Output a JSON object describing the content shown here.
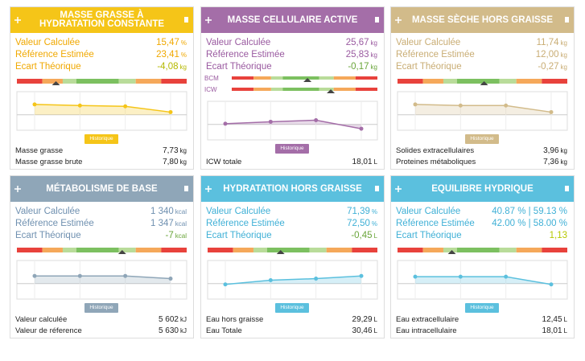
{
  "cards": [
    {
      "title": "MASSE GRASSE À HYDRATATION CONSTANTE",
      "color": "#f5c518",
      "text_color": "#f0a800",
      "rows": [
        {
          "label": "Valeur Calculée",
          "value": "15,47",
          "unit": "%"
        },
        {
          "label": "Référence Estimée",
          "value": "23,41",
          "unit": "%"
        },
        {
          "label": "Ecart Théorique",
          "value": "-4,08",
          "unit": "kg",
          "color": "#b5b800"
        }
      ],
      "gauges": [
        {
          "marker": 23
        }
      ],
      "history": [
        67,
        64,
        62,
        47
      ],
      "button": "Historique",
      "footer": [
        {
          "label": "Masse grasse",
          "value": "7,73",
          "unit": "kg"
        },
        {
          "label": "Masse grasse brute",
          "value": "7,80",
          "unit": "kg"
        }
      ]
    },
    {
      "title": "MASSE CELLULAIRE ACTIVE",
      "color": "#a46ea8",
      "text_color": "#9a5aa0",
      "rows": [
        {
          "label": "Valeur Calculée",
          "value": "25,67",
          "unit": "kg"
        },
        {
          "label": "Référence Estimée",
          "value": "25,83",
          "unit": "kg"
        },
        {
          "label": "Ecart Théorique",
          "value": "-0,17",
          "unit": "kg",
          "color": "#6aa53a"
        }
      ],
      "gauges": [
        {
          "label": "BCM",
          "marker": 52
        },
        {
          "label": "ICW",
          "marker": 68
        }
      ],
      "history": [
        42,
        47,
        51,
        29
      ],
      "button": "Historique",
      "footer": [
        {
          "label": "ICW totale",
          "value": "18,01",
          "unit": "L"
        }
      ]
    },
    {
      "title": "MASSE SÈCHE HORS GRAISSE",
      "color": "#d2bb8a",
      "text_color": "#c9ad74",
      "rows": [
        {
          "label": "Valeur Calculée",
          "value": "11,74",
          "unit": "kg"
        },
        {
          "label": "Référence Estimée",
          "value": "12,00",
          "unit": "kg"
        },
        {
          "label": "Ecart Théorique",
          "value": "-0,27",
          "unit": "kg"
        }
      ],
      "gauges": [
        {
          "marker": 51
        }
      ],
      "history": [
        67,
        64,
        64,
        47
      ],
      "button": "Historique",
      "footer": [
        {
          "label": "Solides extracellulaires",
          "value": "3,96",
          "unit": "kg"
        },
        {
          "label": "Proteines métaboliques",
          "value": "7,36",
          "unit": "kg"
        }
      ]
    },
    {
      "title": "MÉTABOLISME DE BASE",
      "color": "#8fa6b8",
      "text_color": "#6f90b0",
      "rows": [
        {
          "label": "Valeur Calculée",
          "value": "1 340",
          "unit": "kcal"
        },
        {
          "label": "Référence Estimée",
          "value": "1 347",
          "unit": "kcal"
        },
        {
          "label": "Ecart Théorique",
          "value": "-7",
          "unit": "kcal",
          "color": "#6aa53a"
        }
      ],
      "gauges": [
        {
          "marker": 62
        }
      ],
      "history": [
        60,
        60,
        60,
        53
      ],
      "button": "Historique",
      "footer": [
        {
          "label": "Valeur calculée",
          "value": "5 602",
          "unit": "kJ"
        },
        {
          "label": "Valeur de réference",
          "value": "5 630",
          "unit": "kJ"
        }
      ]
    },
    {
      "title": "HYDRATATION HORS GRAISSE",
      "color": "#5bc0de",
      "text_color": "#3fb0d6",
      "rows": [
        {
          "label": "Valeur Calculée",
          "value": "71,39",
          "unit": "%"
        },
        {
          "label": "Référence Estimée",
          "value": "72,50",
          "unit": "%"
        },
        {
          "label": "Ecart Théorique",
          "value": "-0,45",
          "unit": "L",
          "color": "#6aa53a"
        }
      ],
      "gauges": [
        {
          "marker": 43
        }
      ],
      "history": [
        38,
        49,
        53,
        60
      ],
      "button": "Historique",
      "footer": [
        {
          "label": "Eau hors graisse",
          "value": "29,29",
          "unit": "L"
        },
        {
          "label": "Eau Totale",
          "value": "30,46",
          "unit": "L"
        }
      ]
    },
    {
      "title": "EQUILIBRE HYDRIQUE",
      "color": "#5bc0de",
      "text_color": "#3fb0d6",
      "rows": [
        {
          "label": "Valeur Calculée",
          "value": "40.87 % | 59.13 %",
          "unit": ""
        },
        {
          "label": "Référence Estimée",
          "value": "42.00 % | 58.00 %",
          "unit": ""
        },
        {
          "label": "Ecart Théorique",
          "value": "1,13",
          "unit": "",
          "color": "#b5c800"
        }
      ],
      "gauges": [
        {
          "marker": 32
        }
      ],
      "history": [
        58,
        58,
        58,
        38
      ],
      "button": "Historique",
      "footer": [
        {
          "label": "Eau extracellulaire",
          "value": "12,45",
          "unit": "L"
        },
        {
          "label": "Eau intracellulaire",
          "value": "18,01",
          "unit": "L"
        }
      ]
    }
  ]
}
